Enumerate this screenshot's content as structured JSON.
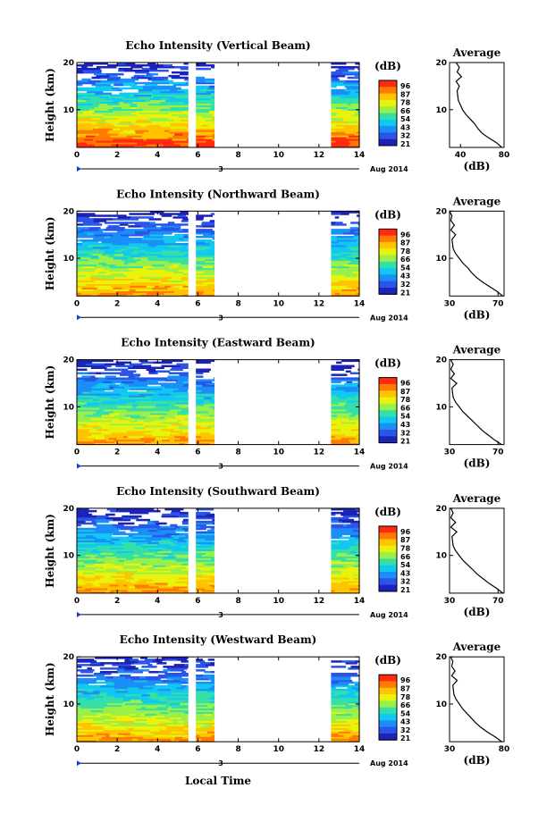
{
  "figure": {
    "xlabel": "Local Time",
    "colorbar_unit": "(dB)",
    "colorbar_ticks": [
      "96",
      "87",
      "78",
      "66",
      "54",
      "43",
      "32",
      "21"
    ],
    "colorbar_colors": [
      "#ff2a10",
      "#ff7a00",
      "#ffc400",
      "#e8f20a",
      "#9af046",
      "#34e0a8",
      "#10c8f0",
      "#1b8ef7",
      "#2a55e8",
      "#1d23b8"
    ],
    "date_label": "Aug 2014",
    "date_marker": "3",
    "average_title": "Average",
    "average_xlabel": "(dB)"
  },
  "chart_data": [
    {
      "type": "heatmap",
      "title": "Echo Intensity (Vertical Beam)",
      "ylabel": "Height (km)",
      "xlim": [
        0,
        14
      ],
      "ylim": [
        2,
        20
      ],
      "x_ticks": [
        "0",
        "2",
        "4",
        "6",
        "8",
        "10",
        "12",
        "14"
      ],
      "y_ticks": [
        "10",
        "20"
      ],
      "data_segments_hours": [
        [
          0,
          5.5
        ],
        [
          5.9,
          6.8
        ],
        [
          12.6,
          14
        ]
      ],
      "colorbar_ticks": [
        "96",
        "87",
        "78",
        "66",
        "54",
        "43",
        "32",
        "21"
      ],
      "average_profile": {
        "xlim": [
          30,
          80
        ],
        "x_ticks": [
          "40",
          "80"
        ],
        "height_km": [
          2,
          3,
          4,
          5,
          6,
          7,
          8,
          9,
          10,
          11,
          12,
          14,
          15,
          16,
          17,
          18,
          19,
          20
        ],
        "db": [
          78,
          73,
          66,
          60,
          56,
          53,
          49,
          45,
          42,
          40,
          38,
          37,
          39,
          36,
          41,
          37,
          39,
          36
        ]
      }
    },
    {
      "type": "heatmap",
      "title": "Echo Intensity (Northward Beam)",
      "ylabel": "Height (km)",
      "xlim": [
        0,
        14
      ],
      "ylim": [
        2,
        20
      ],
      "x_ticks": [
        "0",
        "2",
        "4",
        "6",
        "8",
        "10",
        "12",
        "14"
      ],
      "y_ticks": [
        "10",
        "20"
      ],
      "data_segments_hours": [
        [
          0,
          5.5
        ],
        [
          5.9,
          6.8
        ],
        [
          12.6,
          14
        ]
      ],
      "colorbar_ticks": [
        "96",
        "87",
        "78",
        "66",
        "54",
        "43",
        "32",
        "21"
      ],
      "average_profile": {
        "xlim": [
          30,
          75
        ],
        "x_ticks": [
          "30",
          "70"
        ],
        "height_km": [
          2,
          3,
          4,
          5,
          6,
          7,
          8,
          9,
          10,
          11,
          12,
          14,
          15,
          16,
          17,
          18,
          19,
          20
        ],
        "db": [
          74,
          69,
          63,
          57,
          52,
          48,
          45,
          41,
          38,
          35,
          33,
          32,
          35,
          31,
          34,
          31,
          32,
          30
        ]
      }
    },
    {
      "type": "heatmap",
      "title": "Echo Intensity (Eastward Beam)",
      "ylabel": "Height (km)",
      "xlim": [
        0,
        14
      ],
      "ylim": [
        2,
        20
      ],
      "x_ticks": [
        "0",
        "2",
        "4",
        "6",
        "8",
        "10",
        "12",
        "14"
      ],
      "y_ticks": [
        "10",
        "20"
      ],
      "data_segments_hours": [
        [
          0,
          5.5
        ],
        [
          5.9,
          6.8
        ],
        [
          12.6,
          14
        ]
      ],
      "colorbar_ticks": [
        "96",
        "87",
        "78",
        "66",
        "54",
        "43",
        "32",
        "21"
      ],
      "average_profile": {
        "xlim": [
          30,
          75
        ],
        "x_ticks": [
          "30",
          "70"
        ],
        "height_km": [
          2,
          3,
          4,
          5,
          6,
          7,
          8,
          9,
          10,
          11,
          12,
          14,
          15,
          16,
          17,
          18,
          19,
          20
        ],
        "db": [
          73,
          67,
          62,
          57,
          53,
          49,
          45,
          41,
          38,
          35,
          33,
          32,
          36,
          31,
          34,
          31,
          33,
          31
        ]
      }
    },
    {
      "type": "heatmap",
      "title": "Echo Intensity (Southward Beam)",
      "ylabel": "Height (km)",
      "xlim": [
        0,
        14
      ],
      "ylim": [
        2,
        20
      ],
      "x_ticks": [
        "0",
        "2",
        "4",
        "6",
        "8",
        "10",
        "12",
        "14"
      ],
      "y_ticks": [
        "10",
        "20"
      ],
      "data_segments_hours": [
        [
          0,
          5.5
        ],
        [
          5.9,
          6.8
        ],
        [
          12.6,
          14
        ]
      ],
      "colorbar_ticks": [
        "96",
        "87",
        "78",
        "66",
        "54",
        "43",
        "32",
        "21"
      ],
      "average_profile": {
        "xlim": [
          30,
          75
        ],
        "x_ticks": [
          "30",
          "70"
        ],
        "height_km": [
          2,
          3,
          4,
          5,
          6,
          7,
          8,
          9,
          10,
          11,
          12,
          14,
          15,
          16,
          17,
          18,
          19,
          20
        ],
        "db": [
          74,
          69,
          63,
          58,
          53,
          49,
          45,
          41,
          38,
          35,
          33,
          32,
          36,
          31,
          35,
          31,
          33,
          31
        ]
      }
    },
    {
      "type": "heatmap",
      "title": "Echo Intensity (Westward Beam)",
      "ylabel": "Height (km)",
      "xlim": [
        0,
        14
      ],
      "ylim": [
        2,
        20
      ],
      "x_ticks": [
        "0",
        "2",
        "4",
        "6",
        "8",
        "10",
        "12",
        "14"
      ],
      "y_ticks": [
        "10",
        "20"
      ],
      "data_segments_hours": [
        [
          0,
          5.5
        ],
        [
          5.9,
          6.8
        ],
        [
          12.6,
          14
        ]
      ],
      "colorbar_ticks": [
        "96",
        "87",
        "78",
        "66",
        "54",
        "43",
        "32",
        "21"
      ],
      "average_profile": {
        "xlim": [
          30,
          80
        ],
        "x_ticks": [
          "30",
          "80"
        ],
        "height_km": [
          2,
          3,
          4,
          5,
          6,
          7,
          8,
          9,
          10,
          11,
          12,
          14,
          15,
          16,
          17,
          18,
          19,
          20
        ],
        "db": [
          78,
          72,
          65,
          59,
          54,
          50,
          46,
          42,
          39,
          36,
          34,
          33,
          37,
          32,
          35,
          32,
          33,
          31
        ]
      }
    }
  ]
}
